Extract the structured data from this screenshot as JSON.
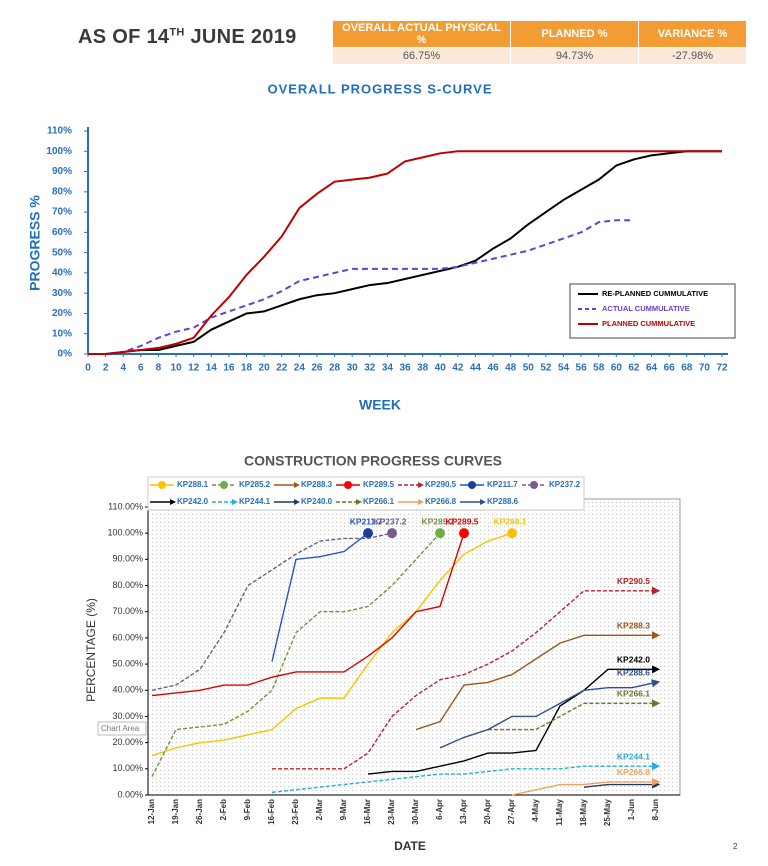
{
  "header": {
    "prefix": "AS OF 14",
    "sup": "TH",
    "suffix": "JUNE 2019"
  },
  "table": {
    "headers": [
      "OVERALL ACTUAL PHYSICAL %",
      "PLANNED %",
      "VARIANCE %"
    ],
    "rows": [
      [
        "66.75%",
        "94.73%",
        "-27.98%"
      ]
    ]
  },
  "page_number": "2",
  "chart_data": [
    {
      "type": "line",
      "title": "OVERALL PROGRESS S-CURVE",
      "x_label": "WEEK",
      "y_label": "PROGRESS %",
      "x": [
        0,
        2,
        4,
        6,
        8,
        10,
        12,
        14,
        16,
        18,
        20,
        22,
        24,
        26,
        28,
        30,
        32,
        34,
        36,
        38,
        40,
        42,
        44,
        46,
        48,
        50,
        52,
        54,
        56,
        58,
        60,
        62,
        64,
        66,
        68,
        70,
        72
      ],
      "xlim": [
        0,
        72
      ],
      "xticks": [
        0,
        2,
        4,
        6,
        8,
        10,
        12,
        14,
        16,
        18,
        20,
        22,
        24,
        26,
        28,
        30,
        32,
        34,
        36,
        38,
        40,
        42,
        44,
        46,
        48,
        50,
        52,
        54,
        56,
        58,
        60,
        62,
        64,
        66,
        68,
        70,
        72
      ],
      "ylim": [
        0,
        110
      ],
      "yticks": [
        {
          "value": 0,
          "label": "0%"
        },
        {
          "value": 10,
          "label": "10%"
        },
        {
          "value": 20,
          "label": "20%"
        },
        {
          "value": 30,
          "label": "30%"
        },
        {
          "value": 40,
          "label": "40%"
        },
        {
          "value": 50,
          "label": "50%"
        },
        {
          "value": 60,
          "label": "60%"
        },
        {
          "value": 70,
          "label": "70%"
        },
        {
          "value": 80,
          "label": "80%"
        },
        {
          "value": 90,
          "label": "90%"
        },
        {
          "value": 100,
          "label": "100%"
        },
        {
          "value": 110,
          "label": "110%"
        }
      ],
      "legend": "lower right",
      "series": [
        {
          "name": "RE-PLANNED CUMMULATIVE",
          "color": "#000000",
          "dash": false,
          "values": [
            0,
            0,
            1,
            2,
            2,
            4,
            6,
            12,
            16,
            20,
            21,
            24,
            27,
            29,
            30,
            32,
            34,
            35,
            37,
            39,
            41,
            43,
            46,
            52,
            57,
            64,
            70,
            76,
            81,
            86,
            93,
            96,
            98,
            99,
            100,
            100,
            100
          ]
        },
        {
          "name": "ACTUAL CUMMULATIVE",
          "color": "#6a3fd6",
          "dash": true,
          "values": [
            0,
            0,
            1,
            4,
            8,
            11,
            13,
            18,
            21,
            24,
            27,
            31,
            36,
            38,
            40,
            42,
            42,
            42,
            42,
            42,
            42,
            43,
            45,
            47,
            49,
            51,
            54,
            57,
            60,
            65,
            66,
            66,
            null,
            null,
            null,
            null,
            null
          ]
        },
        {
          "name": "PLANNED CUMMULATIVE",
          "color": "#c00000",
          "dash": false,
          "values": [
            0,
            0,
            1,
            2,
            3,
            5,
            8,
            19,
            28,
            39,
            48,
            58,
            72,
            79,
            85,
            86,
            87,
            89,
            95,
            97,
            99,
            100,
            100,
            100,
            100,
            100,
            100,
            100,
            100,
            100,
            100,
            100,
            100,
            100,
            100,
            100,
            100
          ]
        }
      ]
    },
    {
      "type": "line",
      "title": "CONSTRUCTION PROGRESS CURVES",
      "x_label": "DATE",
      "y_label": "PERCENTAGE (%)",
      "tooltip": "Chart Area",
      "categories": [
        "12-Jan",
        "19-Jan",
        "26-Jan",
        "2-Feb",
        "9-Feb",
        "16-Feb",
        "23-Feb",
        "2-Mar",
        "9-Mar",
        "16-Mar",
        "23-Mar",
        "30-Mar",
        "6-Apr",
        "13-Apr",
        "20-Apr",
        "27-Apr",
        "4-May",
        "11-May",
        "18-May",
        "25-May",
        "1-Jun",
        "8-Jun"
      ],
      "ylim": [
        0,
        110
      ],
      "yticks": [
        {
          "value": 0,
          "label": "0.00%"
        },
        {
          "value": 10,
          "label": "10.00%"
        },
        {
          "value": 20,
          "label": "20.00%"
        },
        {
          "value": 30,
          "label": "30.00%"
        },
        {
          "value": 40,
          "label": "40.00%"
        },
        {
          "value": 50,
          "label": "50.00%"
        },
        {
          "value": 60,
          "label": "60.00%"
        },
        {
          "value": 70,
          "label": "70.00%"
        },
        {
          "value": 80,
          "label": "80.00%"
        },
        {
          "value": 90,
          "label": "90.00%"
        },
        {
          "value": 100,
          "label": "100.00%"
        },
        {
          "value": 110,
          "label": "110.00%"
        }
      ],
      "legend": "top",
      "series": [
        {
          "name": "KP288.1",
          "color": "#ffc000",
          "dash": false,
          "end": "circle",
          "marker_color": "#ffc000",
          "label_end": true,
          "values": [
            15,
            18,
            20,
            21,
            23,
            25,
            33,
            37,
            37,
            50,
            62,
            70,
            82,
            92,
            97,
            100,
            null,
            null,
            null,
            null,
            null,
            null
          ]
        },
        {
          "name": "KP285.2",
          "color": "#77933c",
          "dash": true,
          "end": "circle",
          "marker_color": "#70ad47",
          "label_end": true,
          "values": [
            7,
            25,
            26,
            27,
            32,
            40,
            62,
            70,
            70,
            72,
            80,
            90,
            100,
            null,
            null,
            null,
            null,
            null,
            null,
            null,
            null,
            null
          ]
        },
        {
          "name": "KP288.3",
          "color": "#a0561c",
          "dash": false,
          "end": "arrow",
          "marker_color": "#a0561c",
          "label_end": true,
          "values": [
            null,
            null,
            null,
            null,
            null,
            null,
            null,
            null,
            null,
            null,
            null,
            25,
            28,
            42,
            43,
            46,
            52,
            58,
            61,
            61,
            61,
            61
          ]
        },
        {
          "name": "KP289.5",
          "color": "#e00000",
          "dash": false,
          "end": "circle",
          "marker_color": "#ff0000",
          "label_end": true,
          "values": [
            38,
            39,
            40,
            42,
            42,
            45,
            47,
            47,
            47,
            53,
            60,
            70,
            72,
            100,
            null,
            null,
            null,
            null,
            null,
            null,
            null,
            null
          ]
        },
        {
          "name": "KP290.5",
          "color": "#c0202a",
          "dash": true,
          "end": "arrow",
          "marker_color": "#c0202a",
          "label_end": true,
          "values": [
            null,
            null,
            null,
            null,
            null,
            10,
            10,
            10,
            10,
            16,
            30,
            38,
            44,
            46,
            50,
            55,
            62,
            70,
            78,
            78,
            78,
            78
          ]
        },
        {
          "name": "KP211.7",
          "color": "#1f55c8",
          "dash": false,
          "end": "circle",
          "marker_color": "#1f3c9c",
          "label_end": true,
          "values": [
            null,
            null,
            null,
            null,
            null,
            51,
            90,
            91,
            93,
            100,
            null,
            null,
            null,
            null,
            null,
            null,
            null,
            null,
            null,
            null,
            null,
            null
          ]
        },
        {
          "name": "KP237.2",
          "color": "#6b5b95",
          "dash": true,
          "end": "circle",
          "marker_color": "#7a5c8c",
          "label_end": true,
          "values": [
            40,
            42,
            48,
            62,
            80,
            86,
            92,
            97,
            98,
            98,
            100,
            null,
            null,
            null,
            null,
            null,
            null,
            null,
            null,
            null,
            null,
            null
          ]
        },
        {
          "name": "KP242.0",
          "color": "#000000",
          "dash": false,
          "end": "arrow",
          "marker_color": "#000000",
          "label_end": true,
          "values": [
            null,
            null,
            null,
            null,
            null,
            null,
            null,
            null,
            null,
            8,
            9,
            9,
            11,
            13,
            16,
            16,
            17,
            34,
            40,
            48,
            48,
            48
          ]
        },
        {
          "name": "KP244.1",
          "color": "#22b0d8",
          "dash": true,
          "end": "arrow",
          "marker_color": "#22b0d8",
          "label_end": true,
          "values": [
            null,
            null,
            null,
            null,
            null,
            1,
            2,
            3,
            4,
            5,
            6,
            7,
            8,
            8,
            9,
            10,
            10,
            10,
            11,
            11,
            11,
            11
          ]
        },
        {
          "name": "KP240.0",
          "color": "#1f3864",
          "dash": false,
          "end": "arrow",
          "marker_color": "#1f3864",
          "label_end": false,
          "values": [
            null,
            null,
            null,
            null,
            null,
            null,
            null,
            null,
            null,
            null,
            null,
            null,
            null,
            null,
            null,
            null,
            null,
            null,
            3,
            4,
            4,
            4
          ]
        },
        {
          "name": "KP266.1",
          "color": "#6b7a2a",
          "dash": true,
          "end": "arrow",
          "marker_color": "#6b7a2a",
          "label_end": true,
          "values": [
            null,
            null,
            null,
            null,
            null,
            null,
            null,
            null,
            null,
            null,
            null,
            null,
            null,
            null,
            25,
            25,
            25,
            30,
            35,
            35,
            35,
            35
          ]
        },
        {
          "name": "KP266.8",
          "color": "#f0a060",
          "dash": false,
          "end": "arrow",
          "marker_color": "#f0a060",
          "label_end": true,
          "values": [
            null,
            null,
            null,
            null,
            null,
            null,
            null,
            null,
            null,
            null,
            null,
            null,
            null,
            null,
            null,
            0,
            2,
            4,
            4,
            5,
            5,
            5
          ]
        },
        {
          "name": "KP288.6",
          "color": "#2f4f8f",
          "dash": false,
          "end": "arrow",
          "marker_color": "#2f4f8f",
          "label_end": true,
          "values": [
            null,
            null,
            null,
            null,
            null,
            null,
            null,
            null,
            null,
            null,
            null,
            null,
            18,
            22,
            25,
            30,
            30,
            35,
            40,
            41,
            41,
            43
          ]
        }
      ]
    }
  ]
}
